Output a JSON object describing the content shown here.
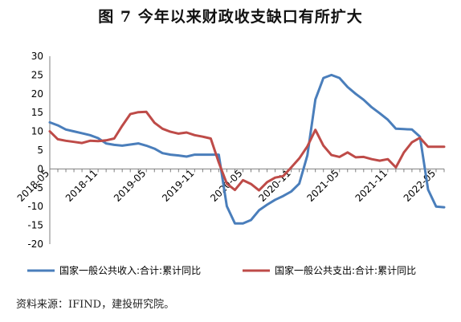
{
  "chart_data": {
    "type": "line",
    "title": "图 7 今年以来财政收支缺口有所扩大",
    "xlabel": "",
    "ylabel": "",
    "ylim": [
      -20,
      30
    ],
    "yticks": [
      "30",
      "25",
      "20",
      "15",
      "10",
      "5",
      "0",
      "-5",
      "-10",
      "-15",
      "-20"
    ],
    "xticks": [
      "2018-05",
      "2018-11",
      "2019-05",
      "2019-11",
      "2020-05",
      "2020-11",
      "2021-05",
      "2021-11",
      "2022-05"
    ],
    "x": [
      "2018-05",
      "2018-06",
      "2018-07",
      "2018-08",
      "2018-09",
      "2018-10",
      "2018-11",
      "2018-12",
      "2019-01",
      "2019-02",
      "2019-03",
      "2019-04",
      "2019-05",
      "2019-06",
      "2019-07",
      "2019-08",
      "2019-09",
      "2019-10",
      "2019-11",
      "2019-12",
      "2020-01",
      "2020-02",
      "2020-03",
      "2020-04",
      "2020-05",
      "2020-06",
      "2020-07",
      "2020-08",
      "2020-09",
      "2020-10",
      "2020-11",
      "2020-12",
      "2021-01",
      "2021-02",
      "2021-03",
      "2021-04",
      "2021-05",
      "2021-06",
      "2021-07",
      "2021-08",
      "2021-09",
      "2021-10",
      "2021-11",
      "2021-12",
      "2022-01",
      "2022-02",
      "2022-03",
      "2022-04",
      "2022-05",
      "2022-06"
    ],
    "series": [
      {
        "name": "国家一般公共收入:合计:累计同比",
        "color": "#4A7EBB",
        "values": [
          12.4,
          11.6,
          10.5,
          10.0,
          9.5,
          9.0,
          8.2,
          6.8,
          6.4,
          6.2,
          6.5,
          6.8,
          6.2,
          5.4,
          4.2,
          3.8,
          3.6,
          3.3,
          3.8,
          3.8,
          3.8,
          3.8,
          -9.9,
          -14.5,
          -14.5,
          -13.6,
          -11.0,
          -9.5,
          -8.2,
          -7.2,
          -6.0,
          -3.9,
          3.6,
          18.5,
          24.2,
          25.0,
          24.2,
          21.8,
          20.0,
          18.4,
          16.4,
          14.8,
          13.1,
          10.7,
          10.6,
          10.5,
          8.6,
          -5.5,
          -10.0,
          -10.2
        ]
      },
      {
        "name": "国家一般公共支出:合计:累计同比",
        "color": "#BE4B48",
        "values": [
          10.0,
          7.9,
          7.5,
          7.2,
          6.9,
          7.5,
          7.4,
          7.6,
          8.1,
          11.5,
          14.6,
          15.1,
          15.2,
          12.3,
          10.7,
          9.9,
          9.4,
          9.7,
          9.0,
          8.6,
          8.1,
          1.7,
          -3.9,
          -5.6,
          -3.0,
          -4.0,
          -5.7,
          -3.5,
          -2.3,
          -1.9,
          0.4,
          2.8,
          6.0,
          10.4,
          6.2,
          3.7,
          3.2,
          4.4,
          3.1,
          3.2,
          2.6,
          2.2,
          2.6,
          0.4,
          4.4,
          7.1,
          8.3,
          5.9,
          5.9,
          5.9
        ]
      }
    ],
    "legend_position": "bottom"
  },
  "source_text": "资料来源：IFIND，建投研究院。"
}
